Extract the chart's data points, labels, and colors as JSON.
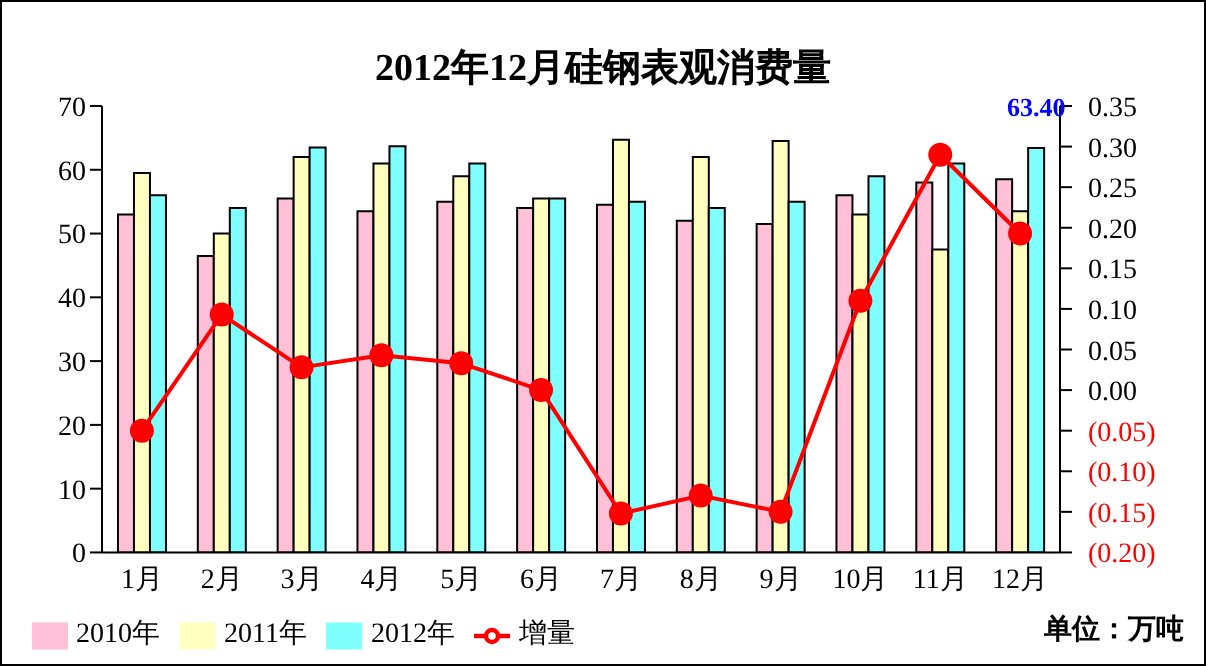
{
  "chart_data": {
    "type": "bar",
    "title": "2012年12月硅钢表观消费量",
    "categories": [
      "1月",
      "2月",
      "3月",
      "4月",
      "5月",
      "6月",
      "7月",
      "8月",
      "9月",
      "10月",
      "11月",
      "12月"
    ],
    "series": [
      {
        "name": "2010年",
        "color": "#ffc0d8",
        "values": [
          53,
          46.5,
          55.5,
          53.5,
          55,
          54,
          54.5,
          52,
          51.5,
          56,
          58,
          58.5
        ]
      },
      {
        "name": "2011年",
        "color": "#ffffc0",
        "values": [
          59.5,
          50,
          62,
          61,
          59,
          55.5,
          64.7,
          62,
          64.5,
          53,
          47.5,
          53.5
        ]
      },
      {
        "name": "2012年",
        "color": "#80ffff",
        "values": [
          56,
          54,
          63.5,
          63.7,
          61,
          55.5,
          55,
          54,
          55,
          59,
          61,
          63.4
        ],
        "value_labels": [
          null,
          null,
          null,
          null,
          null,
          null,
          null,
          null,
          null,
          null,
          null,
          "63.40"
        ]
      },
      {
        "name": "增量",
        "type": "line",
        "axis": "y2",
        "color": "#ff0000",
        "marker": "circle",
        "values": [
          -0.05,
          0.093,
          0.028,
          0.043,
          0.033,
          0.0,
          -0.152,
          -0.13,
          -0.15,
          0.11,
          0.29,
          0.193
        ]
      }
    ],
    "ylim": [
      0,
      70
    ],
    "yticks": [
      0,
      10,
      20,
      30,
      40,
      50,
      60,
      70
    ],
    "y2lim": [
      -0.2,
      0.35
    ],
    "y2ticks": [
      {
        "value": -0.2,
        "label": "(0.20)"
      },
      {
        "value": -0.15,
        "label": "(0.15)"
      },
      {
        "value": -0.1,
        "label": "(0.10)"
      },
      {
        "value": -0.05,
        "label": "(0.05)"
      },
      {
        "value": 0,
        "label": "0.00"
      },
      {
        "value": 0.05,
        "label": "0.05"
      },
      {
        "value": 0.1,
        "label": "0.10"
      },
      {
        "value": 0.15,
        "label": "0.15"
      },
      {
        "value": 0.2,
        "label": "0.20"
      },
      {
        "value": 0.25,
        "label": "0.25"
      },
      {
        "value": 0.3,
        "label": "0.30"
      },
      {
        "value": 0.35,
        "label": "0.35"
      }
    ],
    "legend": "bottom",
    "annotations": [
      "单位：万吨"
    ]
  }
}
